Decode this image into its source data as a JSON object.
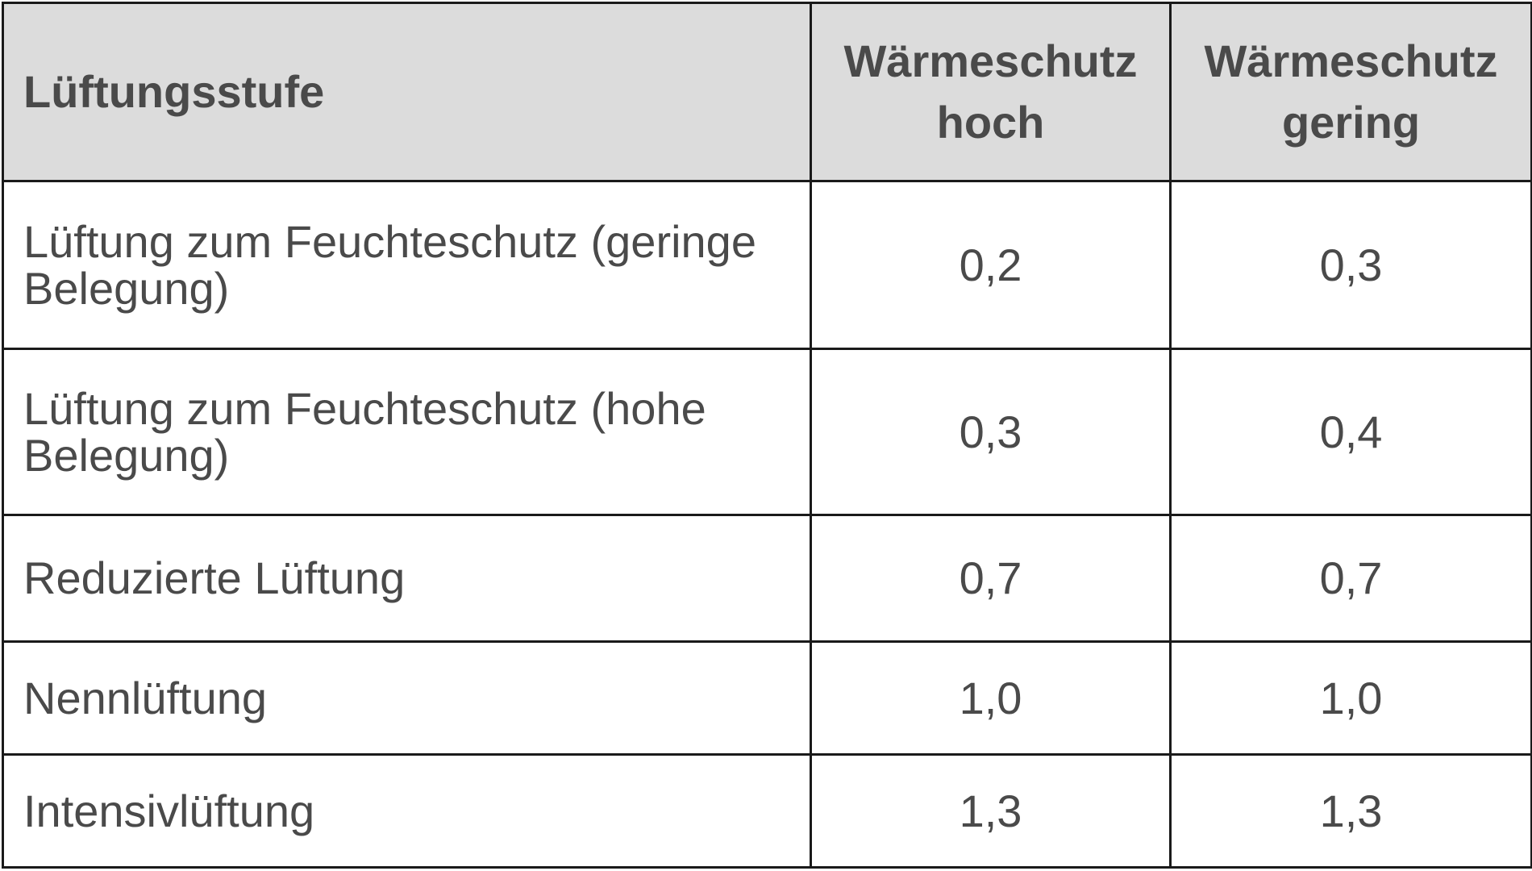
{
  "table": {
    "headers": [
      "Lüftungsstufe",
      "Wärmeschutz hoch",
      "Wärmeschutz gering"
    ],
    "rows": [
      {
        "label": "Lüftung zum Feuchteschutz (geringe Belegung)",
        "hoch": "0,2",
        "gering": "0,3"
      },
      {
        "label": "Lüftung zum Feuchteschutz (hohe Belegung)",
        "hoch": "0,3",
        "gering": "0,4"
      },
      {
        "label": "Reduzierte Lüftung",
        "hoch": "0,7",
        "gering": "0,7"
      },
      {
        "label": "Nennlüftung",
        "hoch": "1,0",
        "gering": "1,0"
      },
      {
        "label": "Intensivlüftung",
        "hoch": "1,3",
        "gering": "1,3"
      }
    ]
  },
  "colors": {
    "header_background": "#dcdcdc",
    "text": "#4a4a4a",
    "border": "#1a1a1a"
  }
}
